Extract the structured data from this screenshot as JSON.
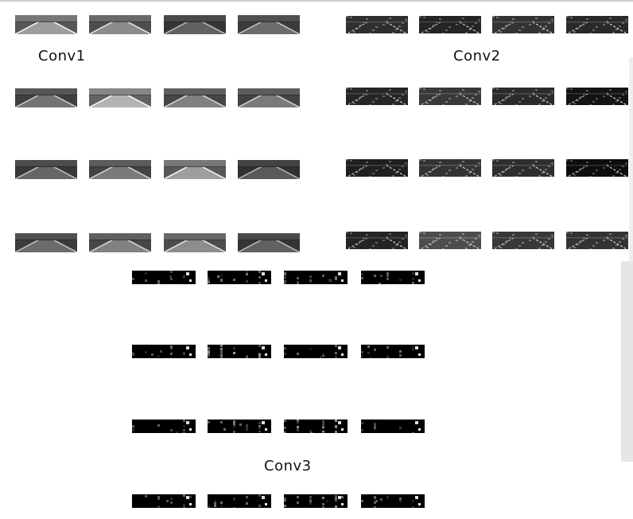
{
  "labels": {
    "conv1": "Conv1",
    "conv2": "Conv2",
    "conv3": "Conv3"
  },
  "groups": [
    {
      "name": "conv1",
      "style": "road-gray",
      "rows": 4,
      "cols": 4,
      "brightness": [
        [
          0.62,
          0.55,
          0.38,
          0.42
        ],
        [
          0.45,
          0.7,
          0.5,
          0.48
        ],
        [
          0.4,
          0.48,
          0.62,
          0.35
        ],
        [
          0.42,
          0.5,
          0.55,
          0.38
        ]
      ]
    },
    {
      "name": "conv2",
      "style": "road-edge",
      "rows": 4,
      "cols": 4,
      "brightness": [
        [
          0.18,
          0.14,
          0.2,
          0.16
        ],
        [
          0.15,
          0.22,
          0.17,
          0.08
        ],
        [
          0.12,
          0.2,
          0.18,
          0.05
        ],
        [
          0.14,
          0.3,
          0.22,
          0.2
        ]
      ]
    },
    {
      "name": "conv3",
      "style": "sparse",
      "rows": 4,
      "cols": 4,
      "brightness": [
        [
          0.05,
          0.12,
          0.15,
          0.06
        ],
        [
          0.06,
          0.28,
          0.05,
          0.1
        ],
        [
          0.04,
          0.18,
          0.26,
          0.03
        ],
        [
          0.06,
          0.1,
          0.22,
          0.08
        ]
      ]
    }
  ]
}
